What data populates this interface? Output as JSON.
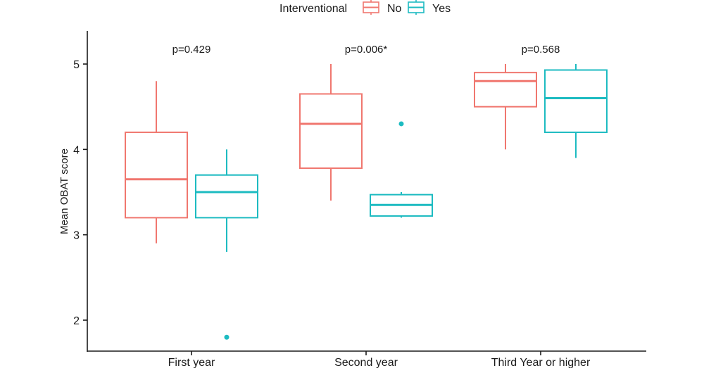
{
  "chart_data": {
    "type": "boxplot",
    "ylabel": "Mean OBAT score",
    "xlabel": "",
    "ylim": [
      1.7,
      5.35
    ],
    "yticks": [
      2,
      3,
      4,
      5
    ],
    "grid": false,
    "legend": {
      "title": "Interventional",
      "position": "top",
      "entries": [
        "No",
        "Yes"
      ]
    },
    "categories": [
      "First year",
      "Second year",
      "Third Year or higher"
    ],
    "annotations": [
      "p=0.429",
      "p=0.006*",
      "p=0.568"
    ],
    "series": [
      {
        "name": "No",
        "color": "#F0776F",
        "boxes": [
          {
            "min": 2.9,
            "q1": 3.2,
            "median": 3.65,
            "q3": 4.2,
            "max": 4.8,
            "outliers": []
          },
          {
            "min": 3.4,
            "q1": 3.78,
            "median": 4.3,
            "q3": 4.65,
            "max": 5.0,
            "outliers": []
          },
          {
            "min": 4.0,
            "q1": 4.5,
            "median": 4.8,
            "q3": 4.9,
            "max": 5.0,
            "outliers": []
          }
        ]
      },
      {
        "name": "Yes",
        "color": "#1DBBC1",
        "boxes": [
          {
            "min": 2.8,
            "q1": 3.2,
            "median": 3.5,
            "q3": 3.7,
            "max": 4.0,
            "outliers": [
              1.8
            ]
          },
          {
            "min": 3.2,
            "q1": 3.22,
            "median": 3.35,
            "q3": 3.47,
            "max": 3.5,
            "outliers": [
              4.3
            ]
          },
          {
            "min": 3.9,
            "q1": 4.2,
            "median": 4.6,
            "q3": 4.93,
            "max": 5.0,
            "outliers": []
          }
        ]
      }
    ]
  }
}
